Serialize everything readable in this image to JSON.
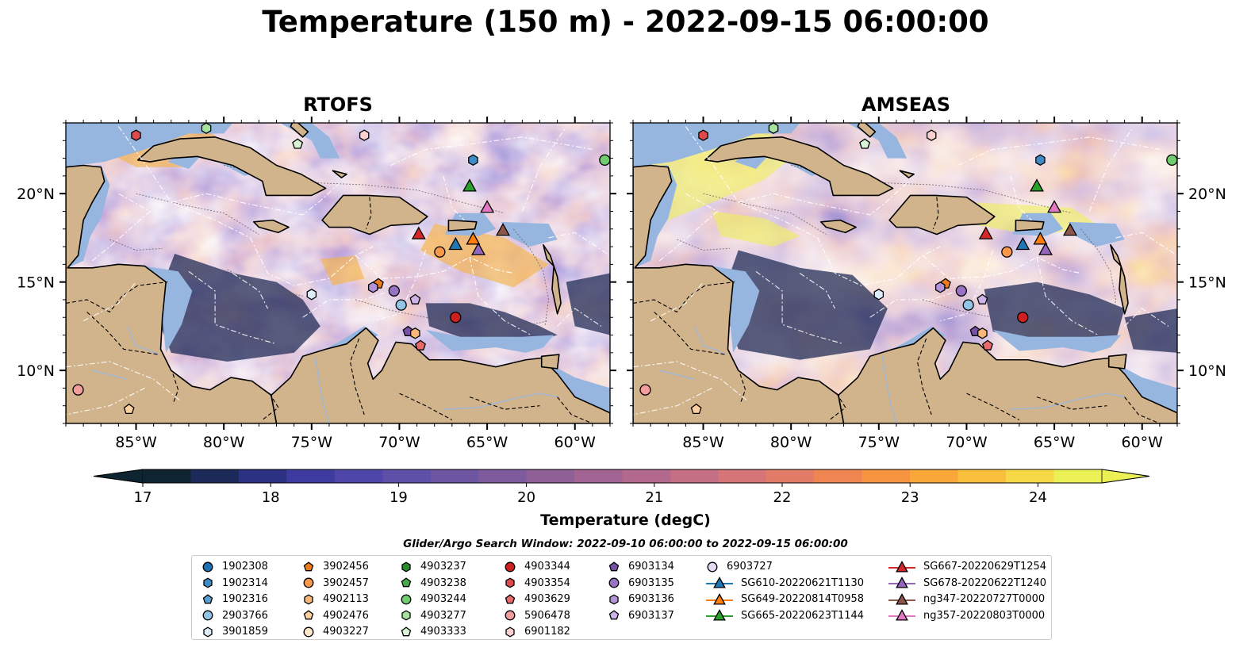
{
  "title": "Temperature (150 m) - 2022-09-15 06:00:00",
  "panels": [
    {
      "title": "RTOFS",
      "variant": "rtofs"
    },
    {
      "title": "AMSEAS",
      "variant": "amseas"
    }
  ],
  "axes": {
    "lon_ticks": [
      "85°W",
      "80°W",
      "75°W",
      "70°W",
      "65°W",
      "60°W"
    ],
    "lat_ticks": [
      "20°N",
      "15°N",
      "10°N"
    ]
  },
  "colorbar": {
    "label": "Temperature (degC)",
    "min": 17,
    "max": 24.5,
    "ticks": [
      "17",
      "18",
      "19",
      "20",
      "21",
      "22",
      "23",
      "24"
    ],
    "colors": [
      "#0f2431",
      "#1c2a5a",
      "#2c3184",
      "#3d3c9e",
      "#4e46a8",
      "#5e4fa8",
      "#6e55a1",
      "#7e5b9c",
      "#8f6097",
      "#a16493",
      "#b3698d",
      "#c46f84",
      "#d57578",
      "#e37c66",
      "#ef8652",
      "#f79440",
      "#faa73a",
      "#fabf3d",
      "#f7d947",
      "#ebf055"
    ]
  },
  "legend": {
    "title": "Glider/Argo Search Window: 2022-09-10 06:00:00 to 2022-09-15 06:00:00",
    "columns": [
      [
        {
          "label": "1902308",
          "marker": "circle",
          "color": "#1f6fb4"
        },
        {
          "label": "1902314",
          "marker": "hexagon",
          "color": "#3f8cc4"
        },
        {
          "label": "1902316",
          "marker": "pentagon",
          "color": "#5aa0d2"
        },
        {
          "label": "2903766",
          "marker": "circle",
          "color": "#93c4e6"
        },
        {
          "label": "3901859",
          "marker": "hexagon",
          "color": "#dcecf8"
        }
      ],
      [
        {
          "label": "3902456",
          "marker": "pentagon",
          "color": "#ec7c1a"
        },
        {
          "label": "3902457",
          "marker": "circle",
          "color": "#f7984a"
        },
        {
          "label": "4902113",
          "marker": "hexagon",
          "color": "#f9b77a"
        },
        {
          "label": "4902476",
          "marker": "pentagon",
          "color": "#fbcfa0"
        },
        {
          "label": "4903227",
          "marker": "circle",
          "color": "#fde6cc"
        }
      ],
      [
        {
          "label": "4903237",
          "marker": "hexagon",
          "color": "#2a8a2a"
        },
        {
          "label": "4903238",
          "marker": "pentagon",
          "color": "#48aa48"
        },
        {
          "label": "4903244",
          "marker": "circle",
          "color": "#6fcc6f"
        },
        {
          "label": "4903277",
          "marker": "hexagon",
          "color": "#a6e2a0"
        },
        {
          "label": "4903333",
          "marker": "pentagon",
          "color": "#d8f4d2"
        }
      ],
      [
        {
          "label": "4903344",
          "marker": "circle",
          "color": "#cf2020"
        },
        {
          "label": "4903354",
          "marker": "hexagon",
          "color": "#de4a4a"
        },
        {
          "label": "4903629",
          "marker": "pentagon",
          "color": "#e86a6a"
        },
        {
          "label": "5906478",
          "marker": "circle",
          "color": "#f29c9c"
        },
        {
          "label": "6901182",
          "marker": "hexagon",
          "color": "#fbd0d0"
        }
      ],
      [
        {
          "label": "6903134",
          "marker": "pentagon",
          "color": "#7750a8"
        },
        {
          "label": "6903135",
          "marker": "circle",
          "color": "#9873c4"
        },
        {
          "label": "6903136",
          "marker": "hexagon",
          "color": "#b393d8"
        },
        {
          "label": "6903137",
          "marker": "pentagon",
          "color": "#ccb3e8"
        }
      ],
      [
        {
          "label": "6903727",
          "marker": "circle",
          "color": "#e6d8f5"
        },
        {
          "label": "SG610-20220621T1130",
          "marker": "triangle-line",
          "color": "#1f77b4"
        },
        {
          "label": "SG649-20220814T0958",
          "marker": "triangle-line",
          "color": "#ff7f0e"
        },
        {
          "label": "SG665-20220623T1144",
          "marker": "triangle-line",
          "color": "#2ca02c"
        }
      ],
      [
        {
          "label": "SG667-20220629T1254",
          "marker": "triangle-line",
          "color": "#d62728"
        },
        {
          "label": "SG678-20220622T1240",
          "marker": "triangle-line",
          "color": "#9467bd"
        },
        {
          "label": "ng347-20220727T0000",
          "marker": "triangle-line",
          "color": "#8c564b"
        },
        {
          "label": "ng357-20220803T0000",
          "marker": "triangle-line",
          "color": "#e377c2"
        }
      ]
    ]
  },
  "observations": [
    {
      "marker": "hexagon",
      "color": "#de4a4a",
      "lon": -85.0,
      "lat": 23.3
    },
    {
      "marker": "hexagon",
      "color": "#a6e2a0",
      "lon": -81.0,
      "lat": 23.7
    },
    {
      "marker": "pentagon",
      "color": "#d8f4d2",
      "lon": -75.8,
      "lat": 22.8
    },
    {
      "marker": "hexagon",
      "color": "#fbd0d0",
      "lon": -72.0,
      "lat": 23.3
    },
    {
      "marker": "hexagon",
      "color": "#3f8cc4",
      "lon": -65.8,
      "lat": 21.9
    },
    {
      "marker": "circle",
      "color": "#6fcc6f",
      "lon": -58.3,
      "lat": 21.9
    },
    {
      "marker": "circle",
      "color": "#f7984a",
      "lon": -67.7,
      "lat": 16.7
    },
    {
      "marker": "pentagon",
      "color": "#ec7c1a",
      "lon": -71.2,
      "lat": 14.9
    },
    {
      "marker": "hexagon",
      "color": "#b393d8",
      "lon": -71.5,
      "lat": 14.7
    },
    {
      "marker": "circle",
      "color": "#9873c4",
      "lon": -70.3,
      "lat": 14.5
    },
    {
      "marker": "pentagon",
      "color": "#ccb3e8",
      "lon": -69.1,
      "lat": 14.0
    },
    {
      "marker": "circle",
      "color": "#93c4e6",
      "lon": -69.9,
      "lat": 13.7
    },
    {
      "marker": "hexagon",
      "color": "#dcecf8",
      "lon": -75.0,
      "lat": 14.3
    },
    {
      "marker": "circle",
      "color": "#cf2020",
      "lon": -66.8,
      "lat": 13.0
    },
    {
      "marker": "pentagon",
      "color": "#7750a8",
      "lon": -69.5,
      "lat": 12.2
    },
    {
      "marker": "hexagon",
      "color": "#f9b77a",
      "lon": -69.1,
      "lat": 12.1
    },
    {
      "marker": "pentagon",
      "color": "#e86a6a",
      "lon": -68.8,
      "lat": 11.4
    },
    {
      "marker": "circle",
      "color": "#f29c9c",
      "lon": -88.3,
      "lat": 8.9
    },
    {
      "marker": "pentagon",
      "color": "#fbcfa0",
      "lon": -85.4,
      "lat": 7.8
    },
    {
      "marker": "triangle",
      "color": "#2ca02c",
      "lon": -66.0,
      "lat": 20.4
    },
    {
      "marker": "triangle",
      "color": "#e377c2",
      "lon": -65.0,
      "lat": 19.2
    },
    {
      "marker": "triangle",
      "color": "#d62728",
      "lon": -68.9,
      "lat": 17.7
    },
    {
      "marker": "triangle",
      "color": "#1f77b4",
      "lon": -66.8,
      "lat": 17.1
    },
    {
      "marker": "triangle",
      "color": "#ff7f0e",
      "lon": -65.8,
      "lat": 17.4
    },
    {
      "marker": "triangle",
      "color": "#9467bd",
      "lon": -65.5,
      "lat": 16.8
    },
    {
      "marker": "triangle",
      "color": "#8c564b",
      "lon": -64.1,
      "lat": 17.9
    }
  ]
}
